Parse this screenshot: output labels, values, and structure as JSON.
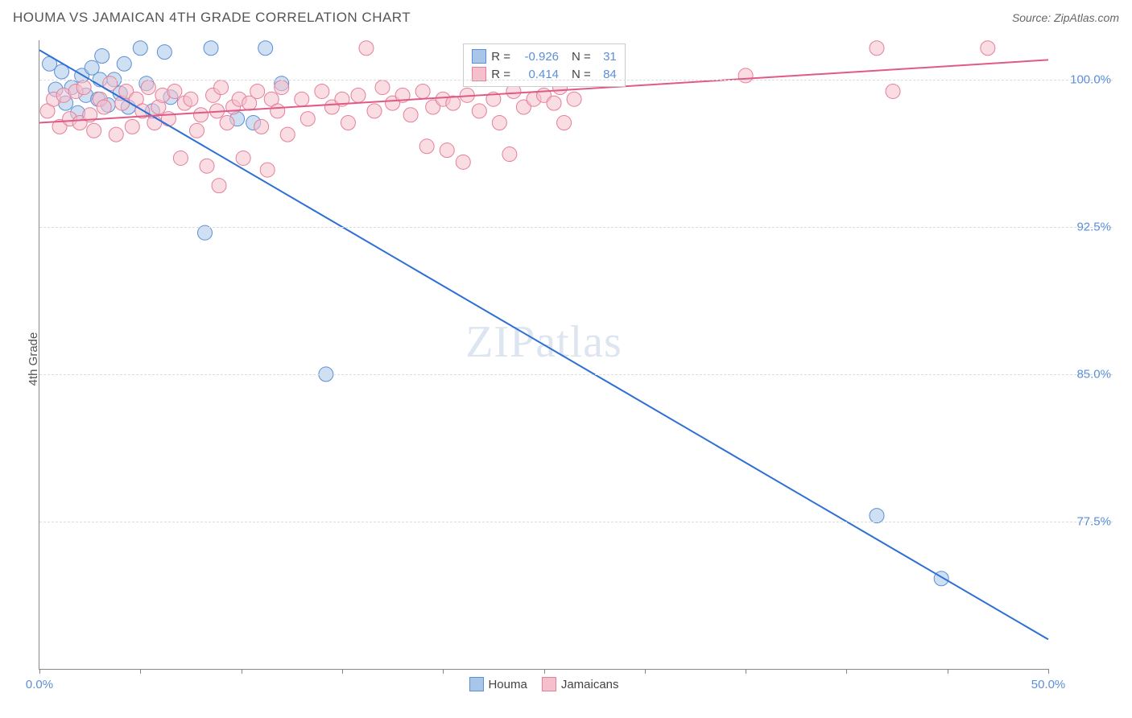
{
  "title": "HOUMA VS JAMAICAN 4TH GRADE CORRELATION CHART",
  "source_label": "Source: ZipAtlas.com",
  "ylabel": "4th Grade",
  "watermark": "ZIPatlas",
  "chart": {
    "type": "scatter",
    "xlim": [
      0,
      50
    ],
    "ylim": [
      70,
      102
    ],
    "xticks": [
      0,
      5,
      10,
      15,
      20,
      25,
      30,
      35,
      40,
      45,
      50
    ],
    "xtick_labels": {
      "0": "0.0%",
      "50": "50.0%"
    },
    "yticks": [
      77.5,
      85.0,
      92.5,
      100.0
    ],
    "ytick_labels": [
      "77.5%",
      "85.0%",
      "92.5%",
      "100.0%"
    ],
    "grid_color": "#dddddd",
    "axis_color": "#888888",
    "background_color": "#ffffff",
    "marker_radius": 9,
    "marker_opacity": 0.55,
    "line_width": 2,
    "series": [
      {
        "name": "Houma",
        "color_fill": "#a8c6ea",
        "color_stroke": "#5b8fd6",
        "line_color": "#2e6fd6",
        "R": "-0.926",
        "N": "31",
        "trend": {
          "x1": 0,
          "y1": 101.5,
          "x2": 50,
          "y2": 71.5
        },
        "points": [
          [
            0.5,
            100.8
          ],
          [
            0.8,
            99.5
          ],
          [
            1.1,
            100.4
          ],
          [
            1.3,
            98.8
          ],
          [
            1.6,
            99.6
          ],
          [
            1.9,
            98.3
          ],
          [
            2.1,
            100.2
          ],
          [
            2.3,
            99.2
          ],
          [
            2.6,
            100.6
          ],
          [
            2.9,
            99.0
          ],
          [
            3.1,
            101.2
          ],
          [
            3.4,
            98.7
          ],
          [
            3.7,
            100.0
          ],
          [
            4.0,
            99.3
          ],
          [
            4.2,
            100.8
          ],
          [
            4.4,
            98.6
          ],
          [
            5.0,
            101.6
          ],
          [
            5.3,
            99.8
          ],
          [
            5.6,
            98.4
          ],
          [
            6.2,
            101.4
          ],
          [
            6.5,
            99.1
          ],
          [
            8.2,
            92.2
          ],
          [
            8.5,
            101.6
          ],
          [
            9.8,
            98.0
          ],
          [
            10.6,
            97.8
          ],
          [
            11.2,
            101.6
          ],
          [
            12.0,
            99.8
          ],
          [
            14.2,
            85.0
          ],
          [
            41.5,
            77.8
          ],
          [
            44.7,
            74.6
          ],
          [
            3.0,
            100.0
          ]
        ]
      },
      {
        "name": "Jamaicans",
        "color_fill": "#f5c0cc",
        "color_stroke": "#e57f9a",
        "line_color": "#e05a85",
        "R": "0.414",
        "N": "84",
        "trend": {
          "x1": 0,
          "y1": 97.8,
          "x2": 50,
          "y2": 101.0
        },
        "points": [
          [
            0.4,
            98.4
          ],
          [
            0.7,
            99.0
          ],
          [
            1.0,
            97.6
          ],
          [
            1.2,
            99.2
          ],
          [
            1.5,
            98.0
          ],
          [
            1.8,
            99.4
          ],
          [
            2.0,
            97.8
          ],
          [
            2.2,
            99.6
          ],
          [
            2.5,
            98.2
          ],
          [
            2.7,
            97.4
          ],
          [
            3.0,
            99.0
          ],
          [
            3.2,
            98.6
          ],
          [
            3.5,
            99.8
          ],
          [
            3.8,
            97.2
          ],
          [
            4.1,
            98.8
          ],
          [
            4.3,
            99.4
          ],
          [
            4.6,
            97.6
          ],
          [
            4.8,
            99.0
          ],
          [
            5.1,
            98.4
          ],
          [
            5.4,
            99.6
          ],
          [
            5.7,
            97.8
          ],
          [
            5.9,
            98.6
          ],
          [
            6.1,
            99.2
          ],
          [
            6.4,
            98.0
          ],
          [
            6.7,
            99.4
          ],
          [
            7.0,
            96.0
          ],
          [
            7.2,
            98.8
          ],
          [
            7.5,
            99.0
          ],
          [
            7.8,
            97.4
          ],
          [
            8.0,
            98.2
          ],
          [
            8.3,
            95.6
          ],
          [
            8.6,
            99.2
          ],
          [
            8.8,
            98.4
          ],
          [
            8.9,
            94.6
          ],
          [
            9.0,
            99.6
          ],
          [
            9.3,
            97.8
          ],
          [
            9.6,
            98.6
          ],
          [
            9.9,
            99.0
          ],
          [
            10.1,
            96.0
          ],
          [
            10.4,
            98.8
          ],
          [
            10.8,
            99.4
          ],
          [
            11.0,
            97.6
          ],
          [
            11.3,
            95.4
          ],
          [
            11.5,
            99.0
          ],
          [
            11.8,
            98.4
          ],
          [
            12.0,
            99.6
          ],
          [
            12.3,
            97.2
          ],
          [
            13.0,
            99.0
          ],
          [
            13.3,
            98.0
          ],
          [
            14.0,
            99.4
          ],
          [
            14.5,
            98.6
          ],
          [
            15.0,
            99.0
          ],
          [
            15.3,
            97.8
          ],
          [
            15.8,
            99.2
          ],
          [
            16.2,
            101.6
          ],
          [
            16.6,
            98.4
          ],
          [
            17.0,
            99.6
          ],
          [
            17.5,
            98.8
          ],
          [
            18.0,
            99.2
          ],
          [
            18.4,
            98.2
          ],
          [
            19.0,
            99.4
          ],
          [
            19.2,
            96.6
          ],
          [
            19.5,
            98.6
          ],
          [
            20.0,
            99.0
          ],
          [
            20.2,
            96.4
          ],
          [
            20.5,
            98.8
          ],
          [
            21.0,
            95.8
          ],
          [
            21.2,
            99.2
          ],
          [
            21.8,
            98.4
          ],
          [
            22.5,
            99.0
          ],
          [
            22.8,
            97.8
          ],
          [
            23.3,
            96.2
          ],
          [
            23.5,
            99.4
          ],
          [
            24.0,
            98.6
          ],
          [
            24.5,
            99.0
          ],
          [
            25.0,
            99.2
          ],
          [
            25.5,
            98.8
          ],
          [
            25.8,
            99.6
          ],
          [
            26.0,
            97.8
          ],
          [
            26.5,
            99.0
          ],
          [
            35.0,
            100.2
          ],
          [
            41.5,
            101.6
          ],
          [
            42.3,
            99.4
          ],
          [
            47.0,
            101.6
          ]
        ]
      }
    ]
  },
  "legend_top_rows": [
    {
      "swatch_fill": "#a8c6ea",
      "swatch_stroke": "#5b8fd6",
      "r_label": "R =",
      "r_val": "-0.926",
      "n_label": "N =",
      "n_val": "31"
    },
    {
      "swatch_fill": "#f5c0cc",
      "swatch_stroke": "#e57f9a",
      "r_label": "R =",
      "r_val": "0.414",
      "n_label": "N =",
      "n_val": "84"
    }
  ],
  "legend_bottom": [
    {
      "swatch_fill": "#a8c6ea",
      "swatch_stroke": "#5b8fd6",
      "label": "Houma"
    },
    {
      "swatch_fill": "#f5c0cc",
      "swatch_stroke": "#e57f9a",
      "label": "Jamaicans"
    }
  ]
}
